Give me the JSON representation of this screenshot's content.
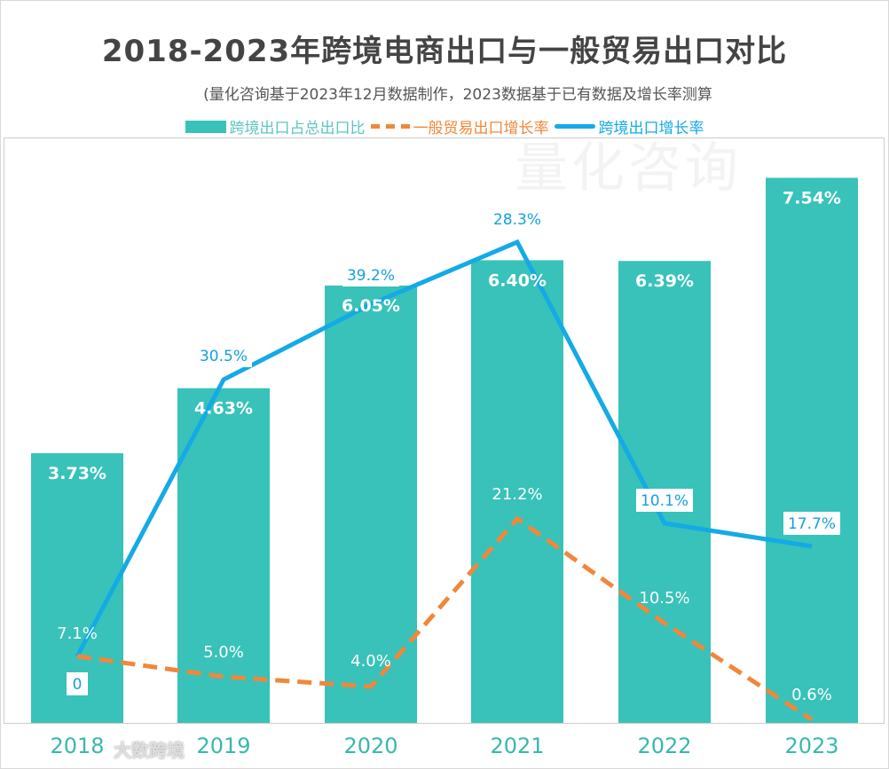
{
  "chart_data": {
    "type": "bar+line",
    "title": "2018-2023年跨境电商出口与一般贸易出口对比",
    "subtitle": "(量化咨询基于2023年12月数据制作，2023数据基于已有数据及增长率测算",
    "categories": [
      "2018",
      "2019",
      "2020",
      "2021",
      "2022",
      "2023"
    ],
    "series": [
      {
        "name": "跨境出口占总出口比",
        "type": "bar",
        "color": "#38c2b9",
        "values": [
          3.73,
          4.63,
          6.05,
          6.4,
          6.39,
          7.54
        ],
        "labels": [
          "3.73%",
          "4.63%",
          "6.05%",
          "6.40%",
          "6.39%",
          "7.54%"
        ]
      },
      {
        "name": "一般贸易出口增长率",
        "type": "line",
        "style": "dashed",
        "color": "#f0873a",
        "values": [
          7.1,
          5.0,
          4.0,
          21.2,
          10.5,
          0.6
        ],
        "labels": [
          "7.1%",
          "5.0%",
          "4.0%",
          "21.2%",
          "10.5%",
          "0.6%"
        ]
      },
      {
        "name": "跨境出口增长率",
        "type": "line",
        "style": "solid",
        "color": "#14aae6",
        "values": [
          0,
          30.5,
          39.2,
          28.3,
          10.1,
          17.7
        ],
        "labels": [
          "0",
          "30.5%",
          "39.2%",
          "28.3%",
          "10.1%",
          "17.7%"
        ]
      }
    ],
    "legend_position": "top",
    "grid": false
  },
  "watermark": "量化咨询",
  "logo": "大数跨境"
}
